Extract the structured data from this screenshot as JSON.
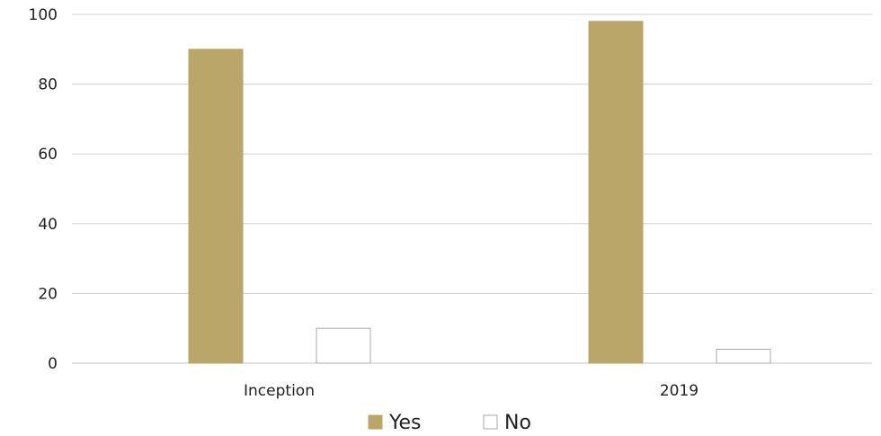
{
  "chart_data": {
    "type": "bar",
    "categories": [
      "Inception",
      "2019"
    ],
    "series": [
      {
        "name": "Yes",
        "values": [
          90,
          98
        ],
        "color": "#baa668",
        "stroke": "#baa668"
      },
      {
        "name": "No",
        "values": [
          10,
          4
        ],
        "color": "#ffffff",
        "stroke": "#a8a8a8"
      }
    ],
    "y_ticks": [
      0,
      20,
      40,
      60,
      80,
      100
    ],
    "ylim": [
      0,
      100
    ],
    "grid": true,
    "legend_position": "bottom",
    "title": "",
    "xlabel": "",
    "ylabel": ""
  },
  "colors": {
    "grid": "#d0d0d0",
    "axis": "#c0c0c0",
    "text": "#222222"
  }
}
